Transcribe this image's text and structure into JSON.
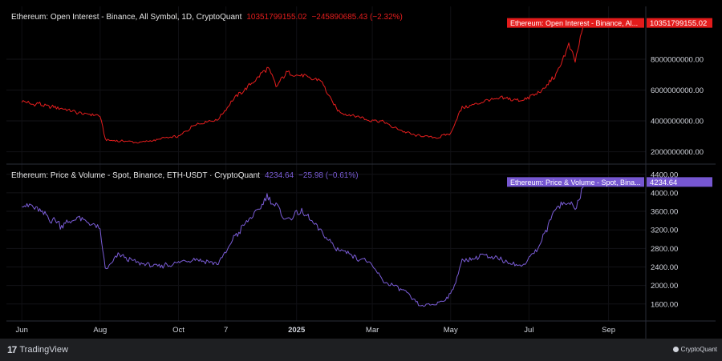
{
  "footer": {
    "brand_left": "TradingView",
    "brand_right": "CryptoQuant"
  },
  "colors": {
    "oi_line": "#e41d1d",
    "price_line": "#7a5cd6",
    "oi_badge": "#e31b1b",
    "price_badge": "#7657d1"
  },
  "chart_data": [
    {
      "type": "line",
      "header": {
        "title": "Ethereum: Open Interest - Binance, All Symbol, 1D, CryptoQuant",
        "last_value": "10351799155.02",
        "change": "−245890685.43 (−2.32%)"
      },
      "legend_badge": "Ethereum: Open Interest - Binance, Al...",
      "last_value_badge": "10351799155.02",
      "y_ticks": [
        "2000000000.00",
        "4000000000.00",
        "6000000000.00",
        "8000000000.00"
      ],
      "ylim": [
        1200000000,
        10800000000
      ],
      "x_ticks": [
        "Jun",
        "Aug",
        "Oct",
        "7",
        "2025",
        "Mar",
        "May",
        "Jul",
        "Sep"
      ],
      "series": [
        {
          "x": [
            "2024-06-01",
            "2024-06-15",
            "2024-07-01",
            "2024-07-15",
            "2024-08-01",
            "2024-08-05",
            "2024-08-15",
            "2024-09-01",
            "2024-09-15",
            "2024-10-01",
            "2024-10-15",
            "2024-11-01",
            "2024-11-15",
            "2024-12-01",
            "2024-12-10",
            "2024-12-16",
            "2024-12-25",
            "2025-01-05",
            "2025-01-20",
            "2025-02-01",
            "2025-02-10",
            "2025-02-25",
            "2025-03-10",
            "2025-03-25",
            "2025-04-08",
            "2025-04-20",
            "2025-05-01",
            "2025-05-10",
            "2025-05-25",
            "2025-06-10",
            "2025-06-25",
            "2025-07-10",
            "2025-07-22",
            "2025-08-01",
            "2025-08-06",
            "2025-08-13"
          ],
          "y": [
            5200000000,
            5100000000,
            4800000000,
            4500000000,
            4300000000,
            2800000000,
            2700000000,
            2600000000,
            2800000000,
            3000000000,
            3800000000,
            4100000000,
            5600000000,
            6700000000,
            7500000000,
            6200000000,
            7200000000,
            6900000000,
            6600000000,
            4800000000,
            4400000000,
            4100000000,
            3900000000,
            3300000000,
            3000000000,
            2900000000,
            3200000000,
            4900000000,
            5200000000,
            5500000000,
            5300000000,
            5900000000,
            7000000000,
            8900000000,
            7800000000,
            10351799155
          ]
        }
      ]
    },
    {
      "type": "line",
      "header": {
        "title": "Ethereum: Price & Volume - Spot, Binance, ETH-USDT · CryptoQuant",
        "last_value": "4234.64",
        "change": "−25.98 (−0.61%)"
      },
      "legend_badge": "Ethereum: Price & Volume - Spot, Bina...",
      "last_value_badge": "4234.64",
      "y_ticks": [
        "1600.00",
        "2000.00",
        "2400.00",
        "2800.00",
        "3200.00",
        "3600.00",
        "4000.00",
        "4400.00"
      ],
      "ylim": [
        1250,
        4500
      ],
      "x_ticks": [
        "Jun",
        "Aug",
        "Oct",
        "7",
        "2025",
        "Mar",
        "May",
        "Jul",
        "Sep"
      ],
      "series": [
        {
          "x": [
            "2024-06-01",
            "2024-06-15",
            "2024-07-01",
            "2024-07-15",
            "2024-08-01",
            "2024-08-05",
            "2024-08-15",
            "2024-09-01",
            "2024-09-15",
            "2024-10-01",
            "2024-10-15",
            "2024-11-01",
            "2024-11-15",
            "2024-12-01",
            "2024-12-10",
            "2024-12-16",
            "2024-12-25",
            "2025-01-05",
            "2025-01-20",
            "2025-02-01",
            "2025-02-10",
            "2025-02-25",
            "2025-03-10",
            "2025-03-25",
            "2025-04-08",
            "2025-04-20",
            "2025-05-01",
            "2025-05-10",
            "2025-05-25",
            "2025-06-10",
            "2025-06-25",
            "2025-07-10",
            "2025-07-22",
            "2025-08-01",
            "2025-08-06",
            "2025-08-13"
          ],
          "y": [
            3800,
            3600,
            3300,
            3450,
            3200,
            2350,
            2650,
            2500,
            2400,
            2500,
            2600,
            2450,
            3100,
            3600,
            3950,
            3700,
            3400,
            3600,
            3200,
            2800,
            2700,
            2500,
            2100,
            1900,
            1550,
            1600,
            1800,
            2500,
            2650,
            2550,
            2400,
            2900,
            3700,
            3800,
            3600,
            4234.64
          ]
        }
      ]
    }
  ]
}
